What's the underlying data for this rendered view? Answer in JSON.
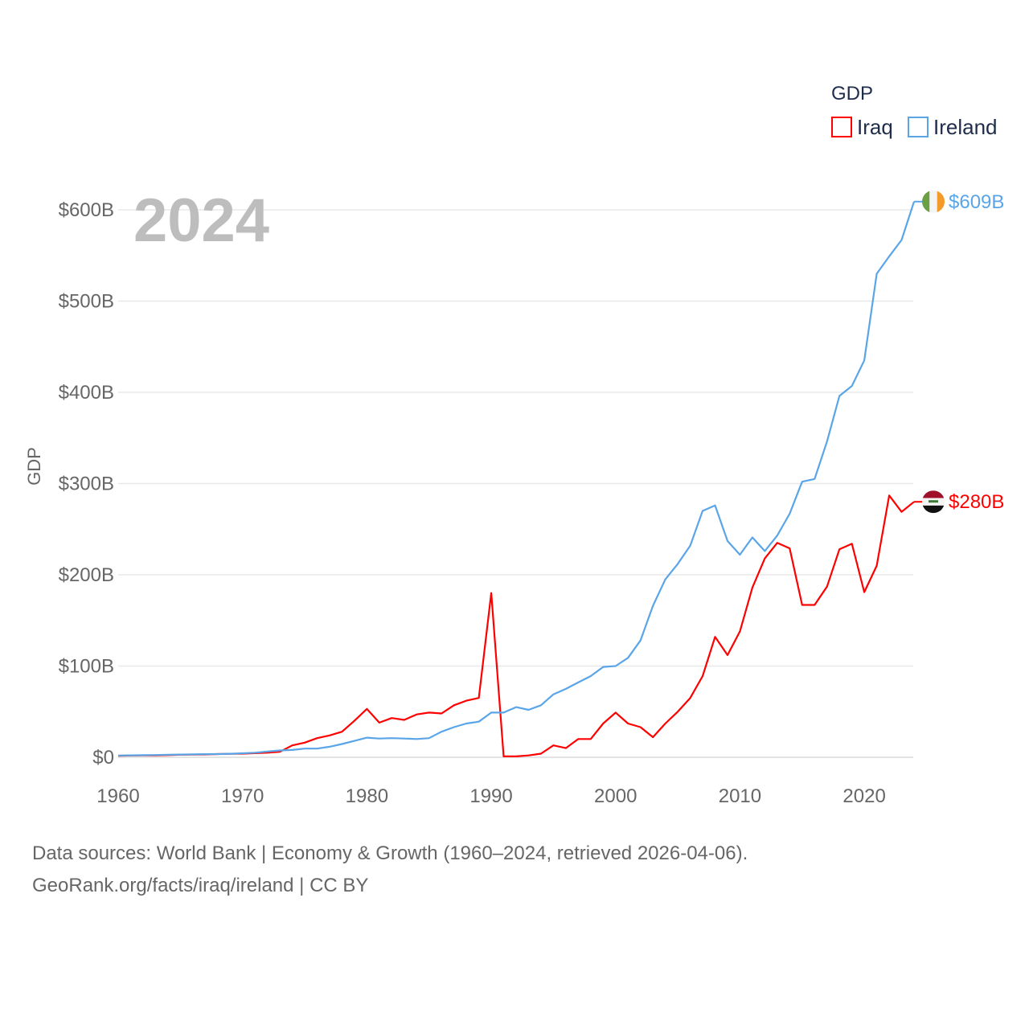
{
  "chart_data": {
    "type": "line",
    "title": "GDP",
    "ylabel": "GDP",
    "xlabel": "",
    "year_label": "2024",
    "xlim": [
      1960,
      2024
    ],
    "ylim": [
      0,
      600
    ],
    "x_ticks": [
      1960,
      1970,
      1980,
      1990,
      2000,
      2010,
      2020
    ],
    "x_tick_labels": [
      "1960",
      "1970",
      "1980",
      "1990",
      "2000",
      "2010",
      "2020"
    ],
    "y_ticks": [
      0,
      100,
      200,
      300,
      400,
      500,
      600
    ],
    "y_tick_labels": [
      "$0",
      "$100B",
      "$200B",
      "$300B",
      "$400B",
      "$500B",
      "$600B"
    ],
    "grid": true,
    "legend_placement": "top-right",
    "units": "billions USD",
    "x": [
      1960,
      1961,
      1962,
      1963,
      1964,
      1965,
      1966,
      1967,
      1968,
      1969,
      1970,
      1971,
      1972,
      1973,
      1974,
      1975,
      1976,
      1977,
      1978,
      1979,
      1980,
      1981,
      1982,
      1983,
      1984,
      1985,
      1986,
      1987,
      1988,
      1989,
      1990,
      1991,
      1992,
      1993,
      1994,
      1995,
      1996,
      1997,
      1998,
      1999,
      2000,
      2001,
      2002,
      2003,
      2004,
      2005,
      2006,
      2007,
      2008,
      2009,
      2010,
      2011,
      2012,
      2013,
      2014,
      2015,
      2016,
      2017,
      2018,
      2019,
      2020,
      2021,
      2022,
      2023,
      2024
    ],
    "series": [
      {
        "name": "Iraq",
        "color": "#ff0000",
        "end_label": "$280B",
        "values": [
          1.7,
          1.9,
          2.0,
          2.1,
          2.4,
          2.8,
          3.0,
          3.1,
          3.5,
          3.8,
          4.0,
          4.5,
          5.0,
          6.0,
          13,
          16,
          21,
          24,
          28,
          40,
          53,
          38,
          43,
          41,
          47,
          49,
          48,
          57,
          62,
          65,
          180,
          1,
          1,
          2,
          4,
          13,
          10,
          20,
          20,
          37,
          49,
          37,
          33,
          22,
          37,
          50,
          65,
          89,
          132,
          112,
          138,
          186,
          218,
          235,
          229,
          167,
          167,
          187,
          228,
          234,
          181,
          210,
          287,
          269,
          280
        ]
      },
      {
        "name": "Ireland",
        "color": "#5aa5e8",
        "end_label": "$609B",
        "values": [
          1.9,
          2.1,
          2.3,
          2.5,
          2.8,
          3.0,
          3.2,
          3.4,
          3.5,
          3.9,
          4.4,
          5.0,
          6.3,
          7.5,
          8.0,
          9.5,
          9.5,
          11.5,
          14.5,
          18,
          21.5,
          20.5,
          21,
          20.5,
          20,
          21,
          28,
          33,
          37,
          39,
          49,
          49,
          55,
          52,
          57,
          69,
          75,
          82,
          89,
          99,
          100,
          109,
          128,
          166,
          195,
          212,
          232,
          270,
          276,
          237,
          222,
          241,
          226,
          243,
          267,
          302,
          305,
          346,
          396,
          407,
          435,
          530,
          549,
          567,
          609
        ]
      }
    ]
  },
  "source": {
    "line1": "Data sources: World Bank | Economy & Growth (1960–2024, retrieved 2026-04-06).",
    "line2": "GeoRank.org/facts/iraq/ireland | CC BY"
  }
}
